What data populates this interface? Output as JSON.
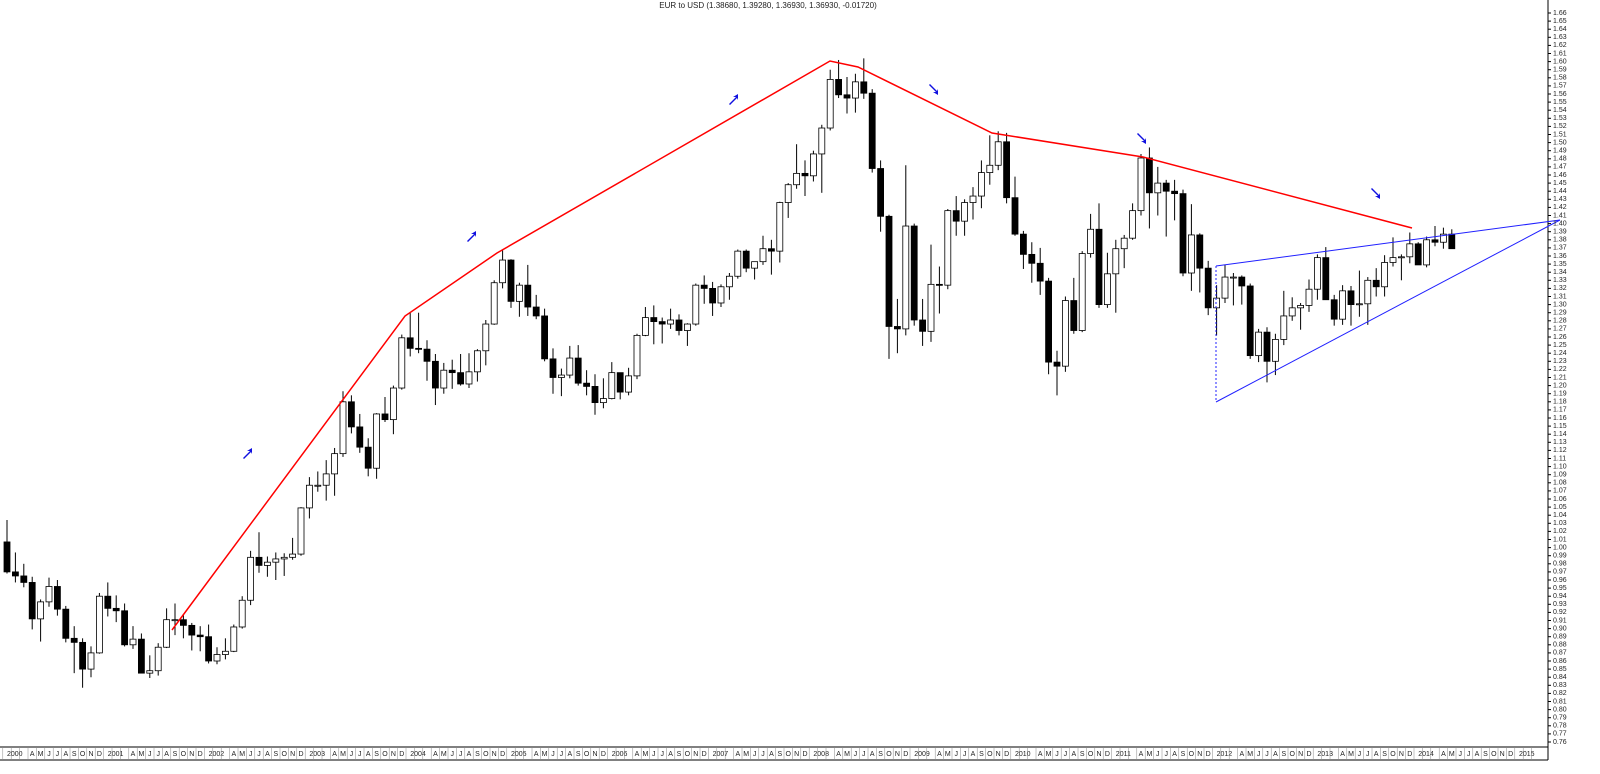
{
  "chart_data": {
    "type": "candlestick",
    "title": "EUR to USD (1.38680, 1.39280, 1.36930, 1.36930, -0.01720)",
    "categories": [
      "2000",
      null,
      null,
      "A",
      "M",
      "J",
      "J",
      "A",
      "S",
      "O",
      "N",
      "D",
      "2001",
      null,
      null,
      "A",
      "M",
      "J",
      "J",
      "A",
      "S",
      "O",
      "N",
      "D",
      "2002",
      null,
      null,
      "A",
      "M",
      "J",
      "J",
      "A",
      "S",
      "O",
      "N",
      "D",
      "2003",
      null,
      null,
      "A",
      "M",
      "J",
      "J",
      "A",
      "S",
      "O",
      "N",
      "D",
      "2004",
      null,
      null,
      "A",
      "M",
      "J",
      "J",
      "A",
      "S",
      "O",
      "N",
      "D",
      "2005",
      null,
      null,
      "A",
      "M",
      "J",
      "J",
      "A",
      "S",
      "O",
      "N",
      "D",
      "2006",
      null,
      null,
      "A",
      "M",
      "J",
      "J",
      "A",
      "S",
      "O",
      "N",
      "D",
      "2007",
      null,
      null,
      "A",
      "M",
      "J",
      "J",
      "A",
      "S",
      "O",
      "N",
      "D",
      "2008",
      null,
      null,
      "A",
      "M",
      "J",
      "J",
      "A",
      "S",
      "O",
      "N",
      "D",
      "2009",
      null,
      null,
      "A",
      "M",
      "J",
      "J",
      "A",
      "S",
      "O",
      "N",
      "D",
      "2010",
      null,
      null,
      "A",
      "M",
      "J",
      "J",
      "A",
      "S",
      "O",
      "N",
      "D",
      "2011",
      null,
      null,
      "A",
      "M",
      "J",
      "J",
      "A",
      "S",
      "O",
      "N",
      "D",
      "2012",
      null,
      null,
      "A",
      "M",
      "J",
      "J",
      "A",
      "S",
      "O",
      "N",
      "D",
      "2013",
      null,
      null,
      "A",
      "M",
      "J",
      "J",
      "A",
      "S",
      "O",
      "N",
      "D",
      "2014",
      null,
      null,
      "A",
      "M",
      "J",
      "J",
      "A",
      "S",
      "O",
      "N",
      "D",
      "2015",
      null,
      null
    ],
    "open": [
      1.007,
      0.97,
      0.965,
      0.957,
      0.912,
      0.933,
      0.952,
      0.924,
      0.888,
      0.883,
      0.85,
      0.87,
      0.94,
      0.925,
      0.922,
      0.88,
      0.887,
      0.845,
      0.848,
      0.877,
      0.911,
      0.911,
      0.904,
      0.892,
      0.89,
      0.86,
      0.868,
      0.872,
      0.902,
      0.935,
      0.988,
      0.978,
      0.982,
      0.986,
      0.988,
      0.992,
      1.049,
      1.077,
      1.077,
      1.091,
      1.116,
      1.18,
      1.149,
      1.124,
      1.098,
      1.165,
      1.158,
      1.197,
      1.259,
      1.246,
      1.245,
      1.23,
      1.197,
      1.219,
      1.216,
      1.202,
      1.217,
      1.243,
      1.276,
      1.327,
      1.355,
      1.304,
      1.324,
      1.297,
      1.286,
      1.233,
      1.21,
      1.213,
      1.234,
      1.203,
      1.199,
      1.179,
      1.184,
      1.216,
      1.192,
      1.212,
      1.262,
      1.284,
      1.279,
      1.276,
      1.281,
      1.268,
      1.276,
      1.324,
      1.32,
      1.302,
      1.322,
      1.335,
      1.366,
      1.345,
      1.353,
      1.369,
      1.366,
      1.426,
      1.448,
      1.462,
      1.459,
      1.486,
      1.518,
      1.578,
      1.559,
      1.555,
      1.575,
      1.561,
      1.468,
      1.409,
      1.273,
      1.27,
      1.397,
      1.281,
      1.267,
      1.325,
      1.324,
      1.416,
      1.403,
      1.426,
      1.434,
      1.463,
      1.472,
      1.501,
      1.432,
      1.387,
      1.362,
      1.351,
      1.329,
      1.229,
      1.224,
      1.305,
      1.268,
      1.363,
      1.393,
      1.3,
      1.338,
      1.369,
      1.382,
      1.416,
      1.481,
      1.438,
      1.45,
      1.44,
      1.437,
      1.339,
      1.386,
      1.345,
      1.296,
      1.308,
      1.334,
      1.334,
      1.323,
      1.237,
      1.266,
      1.23,
      1.257,
      1.286,
      1.296,
      1.299,
      1.319,
      1.358,
      1.306,
      1.282,
      1.317,
      1.3,
      1.301,
      1.33,
      1.322,
      1.352,
      1.358,
      1.359,
      1.375,
      1.349,
      1.38,
      1.377,
      1.387,
      null,
      null,
      null,
      null,
      null,
      null,
      null,
      null,
      null,
      null
    ],
    "high": [
      1.034,
      0.994,
      0.98,
      0.964,
      0.936,
      0.963,
      0.96,
      0.928,
      0.903,
      0.888,
      0.878,
      0.944,
      0.957,
      0.941,
      0.931,
      0.903,
      0.894,
      0.867,
      0.882,
      0.925,
      0.931,
      0.918,
      0.907,
      0.903,
      0.905,
      0.877,
      0.888,
      0.905,
      0.94,
      0.996,
      1.019,
      0.989,
      0.994,
      0.993,
      1.012,
      1.05,
      1.087,
      1.094,
      1.108,
      1.123,
      1.193,
      1.188,
      1.165,
      1.135,
      1.166,
      1.186,
      1.2,
      1.263,
      1.29,
      1.29,
      1.256,
      1.239,
      1.228,
      1.232,
      1.239,
      1.24,
      1.245,
      1.281,
      1.33,
      1.367,
      1.356,
      1.327,
      1.349,
      1.312,
      1.295,
      1.246,
      1.221,
      1.249,
      1.25,
      1.219,
      1.214,
      1.209,
      1.229,
      1.216,
      1.222,
      1.264,
      1.297,
      1.299,
      1.284,
      1.295,
      1.288,
      1.277,
      1.326,
      1.336,
      1.328,
      1.325,
      1.339,
      1.368,
      1.368,
      1.352,
      1.385,
      1.38,
      1.427,
      1.45,
      1.498,
      1.478,
      1.49,
      1.522,
      1.59,
      1.602,
      1.581,
      1.585,
      1.604,
      1.566,
      1.478,
      1.411,
      1.307,
      1.472,
      1.4,
      1.307,
      1.374,
      1.347,
      1.418,
      1.434,
      1.43,
      1.445,
      1.478,
      1.509,
      1.514,
      1.512,
      1.458,
      1.391,
      1.377,
      1.37,
      1.333,
      1.243,
      1.31,
      1.333,
      1.366,
      1.412,
      1.425,
      1.364,
      1.38,
      1.386,
      1.425,
      1.486,
      1.494,
      1.47,
      1.454,
      1.454,
      1.442,
      1.424,
      1.388,
      1.354,
      1.324,
      1.349,
      1.339,
      1.336,
      1.326,
      1.27,
      1.272,
      1.264,
      1.317,
      1.309,
      1.302,
      1.331,
      1.362,
      1.371,
      1.312,
      1.324,
      1.323,
      1.342,
      1.334,
      1.345,
      1.361,
      1.383,
      1.362,
      1.389,
      1.377,
      1.384,
      1.397,
      1.395,
      1.393,
      null,
      null,
      null,
      null,
      null,
      null,
      null,
      null,
      null,
      null
    ],
    "low": [
      0.968,
      0.957,
      0.951,
      0.899,
      0.884,
      0.927,
      0.916,
      0.883,
      0.845,
      0.827,
      0.84,
      0.869,
      0.915,
      0.908,
      0.878,
      0.875,
      0.845,
      0.839,
      0.842,
      0.876,
      0.892,
      0.888,
      0.873,
      0.872,
      0.857,
      0.856,
      0.862,
      0.871,
      0.9,
      0.929,
      0.969,
      0.964,
      0.96,
      0.965,
      0.985,
      0.99,
      1.036,
      1.069,
      1.058,
      1.064,
      1.112,
      1.141,
      1.117,
      1.088,
      1.085,
      1.155,
      1.14,
      1.195,
      1.236,
      1.24,
      1.206,
      1.176,
      1.19,
      1.196,
      1.2,
      1.197,
      1.205,
      1.225,
      1.275,
      1.32,
      1.296,
      1.285,
      1.286,
      1.282,
      1.23,
      1.19,
      1.187,
      1.209,
      1.2,
      1.188,
      1.164,
      1.172,
      1.183,
      1.183,
      1.188,
      1.208,
      1.261,
      1.251,
      1.252,
      1.27,
      1.262,
      1.249,
      1.274,
      1.301,
      1.286,
      1.297,
      1.306,
      1.332,
      1.34,
      1.331,
      1.349,
      1.337,
      1.352,
      1.407,
      1.443,
      1.434,
      1.452,
      1.438,
      1.515,
      1.555,
      1.536,
      1.537,
      1.554,
      1.463,
      1.39,
      1.233,
      1.24,
      1.262,
      1.274,
      1.249,
      1.254,
      1.289,
      1.319,
      1.385,
      1.385,
      1.405,
      1.419,
      1.448,
      1.466,
      1.425,
      1.385,
      1.344,
      1.327,
      1.312,
      1.214,
      1.188,
      1.217,
      1.264,
      1.266,
      1.358,
      1.296,
      1.296,
      1.29,
      1.345,
      1.38,
      1.41,
      1.394,
      1.41,
      1.384,
      1.404,
      1.335,
      1.317,
      1.315,
      1.287,
      1.262,
      1.302,
      1.299,
      1.3,
      1.233,
      1.229,
      1.204,
      1.213,
      1.25,
      1.28,
      1.269,
      1.291,
      1.306,
      1.306,
      1.274,
      1.275,
      1.274,
      1.285,
      1.275,
      1.31,
      1.31,
      1.347,
      1.33,
      1.351,
      1.349,
      1.346,
      1.372,
      1.369,
      1.369,
      null,
      null,
      null,
      null,
      null,
      null,
      null,
      null,
      null,
      null
    ],
    "close": [
      0.97,
      0.965,
      0.957,
      0.912,
      0.933,
      0.952,
      0.924,
      0.888,
      0.883,
      0.85,
      0.87,
      0.94,
      0.925,
      0.922,
      0.88,
      0.887,
      0.845,
      0.848,
      0.877,
      0.911,
      0.911,
      0.904,
      0.892,
      0.89,
      0.86,
      0.868,
      0.872,
      0.902,
      0.935,
      0.988,
      0.978,
      0.982,
      0.986,
      0.988,
      0.992,
      1.049,
      1.077,
      1.077,
      1.091,
      1.116,
      1.18,
      1.149,
      1.124,
      1.098,
      1.165,
      1.158,
      1.197,
      1.259,
      1.246,
      1.245,
      1.23,
      1.197,
      1.219,
      1.216,
      1.202,
      1.217,
      1.243,
      1.276,
      1.327,
      1.355,
      1.304,
      1.324,
      1.297,
      1.286,
      1.233,
      1.21,
      1.213,
      1.234,
      1.203,
      1.199,
      1.179,
      1.184,
      1.216,
      1.192,
      1.212,
      1.262,
      1.284,
      1.279,
      1.276,
      1.281,
      1.268,
      1.276,
      1.324,
      1.32,
      1.302,
      1.322,
      1.335,
      1.366,
      1.345,
      1.353,
      1.369,
      1.366,
      1.426,
      1.448,
      1.462,
      1.459,
      1.486,
      1.518,
      1.578,
      1.559,
      1.555,
      1.575,
      1.561,
      1.468,
      1.409,
      1.273,
      1.27,
      1.397,
      1.281,
      1.267,
      1.325,
      1.324,
      1.416,
      1.403,
      1.426,
      1.434,
      1.463,
      1.472,
      1.501,
      1.432,
      1.387,
      1.362,
      1.351,
      1.329,
      1.229,
      1.224,
      1.305,
      1.268,
      1.363,
      1.393,
      1.3,
      1.338,
      1.369,
      1.382,
      1.416,
      1.481,
      1.438,
      1.45,
      1.44,
      1.437,
      1.339,
      1.386,
      1.345,
      1.296,
      1.308,
      1.334,
      1.334,
      1.323,
      1.237,
      1.266,
      1.23,
      1.257,
      1.286,
      1.296,
      1.299,
      1.319,
      1.358,
      1.306,
      1.282,
      1.317,
      1.3,
      1.301,
      1.33,
      1.322,
      1.352,
      1.358,
      1.359,
      1.375,
      1.349,
      1.38,
      1.377,
      1.387,
      1.369,
      null,
      null,
      null,
      null,
      null,
      null,
      null,
      null,
      null,
      null
    ],
    "up_color": "#ffffff",
    "down_color": "#000000",
    "ylim": [
      0.76,
      1.66
    ],
    "yticks": [
      0.76,
      0.77,
      0.78,
      0.79,
      {
        "value": 0.8,
        "label": "0.80"
      },
      0.81,
      0.82,
      0.83,
      0.84,
      0.85,
      0.86,
      0.87,
      0.88,
      0.89,
      {
        "value": 0.9,
        "label": "0.90"
      },
      0.91,
      0.92,
      0.93,
      0.94,
      0.95,
      0.96,
      0.97,
      0.98,
      0.99,
      {
        "value": 1.0,
        "label": "1.00"
      },
      1.01,
      1.02,
      1.03,
      1.04,
      1.05,
      1.06,
      1.07,
      1.08,
      1.09,
      {
        "value": 1.1,
        "label": "1.10"
      },
      1.11,
      1.12,
      1.13,
      1.14,
      1.15,
      1.16,
      1.17,
      1.18,
      1.19,
      {
        "value": 1.2,
        "label": "1.20"
      },
      1.21,
      1.22,
      1.23,
      1.24,
      1.25,
      1.26,
      1.27,
      1.28,
      1.29,
      {
        "value": 1.3,
        "label": "1.30"
      },
      1.31,
      1.32,
      1.33,
      1.34,
      1.35,
      1.36,
      1.37,
      1.38,
      1.39,
      {
        "value": 1.4,
        "label": "1.40"
      },
      1.41,
      1.42,
      1.43,
      1.44,
      1.45,
      1.46,
      1.47,
      1.48,
      1.49,
      {
        "value": 1.5,
        "label": "1.50"
      },
      1.51,
      1.52,
      1.53,
      1.54,
      1.55,
      1.56,
      1.57,
      1.58,
      1.59,
      {
        "value": 1.6,
        "label": "1.60"
      },
      1.61,
      1.62,
      1.63,
      1.64,
      1.65,
      1.66
    ]
  }
}
